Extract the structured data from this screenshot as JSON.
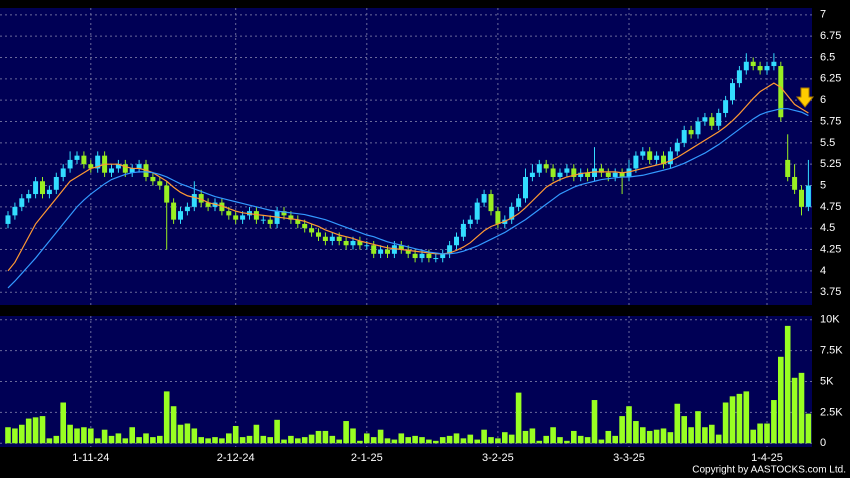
{
  "chart_data": [
    {
      "type": "candlestick",
      "categories": [
        null,
        null,
        null,
        null,
        null,
        null,
        null,
        null,
        null,
        null,
        null,
        null,
        "1-11-24",
        null,
        null,
        null,
        null,
        null,
        null,
        null,
        null,
        null,
        null,
        null,
        null,
        null,
        null,
        null,
        null,
        null,
        null,
        null,
        null,
        "2-12-24",
        null,
        null,
        null,
        null,
        null,
        null,
        null,
        null,
        null,
        null,
        null,
        null,
        null,
        null,
        null,
        null,
        null,
        null,
        "2-1-25",
        null,
        null,
        null,
        null,
        null,
        null,
        null,
        null,
        null,
        null,
        null,
        null,
        null,
        null,
        null,
        null,
        null,
        null,
        "3-2-25",
        null,
        null,
        null,
        null,
        null,
        null,
        null,
        null,
        null,
        null,
        null,
        null,
        null,
        null,
        null,
        null,
        null,
        null,
        "3-3-25",
        null,
        null,
        null,
        null,
        null,
        null,
        null,
        null,
        null,
        null,
        null,
        null,
        null,
        null,
        null,
        null,
        null,
        null,
        null,
        "1-4-25",
        null,
        null,
        null,
        null,
        null,
        null
      ],
      "open": [
        4.55,
        4.65,
        4.75,
        4.85,
        4.9,
        5.05,
        4.9,
        4.95,
        5.1,
        5.2,
        5.3,
        5.35,
        5.25,
        5.2,
        5.35,
        5.15,
        5.2,
        5.25,
        5.15,
        5.2,
        5.25,
        5.1,
        5.05,
        5.0,
        4.8,
        4.6,
        4.7,
        4.75,
        4.9,
        4.8,
        4.75,
        4.8,
        4.7,
        4.65,
        4.6,
        4.65,
        4.7,
        4.6,
        4.6,
        4.55,
        4.7,
        4.65,
        4.6,
        4.55,
        4.5,
        4.45,
        4.4,
        4.35,
        4.4,
        4.35,
        4.3,
        4.35,
        4.3,
        4.3,
        4.2,
        4.25,
        4.2,
        4.3,
        4.25,
        4.2,
        4.15,
        4.2,
        4.15,
        4.15,
        4.2,
        4.3,
        4.4,
        4.55,
        4.6,
        4.8,
        4.9,
        4.7,
        4.55,
        4.6,
        4.75,
        4.85,
        5.1,
        5.15,
        5.25,
        5.2,
        5.1,
        5.15,
        5.2,
        5.1,
        5.15,
        5.1,
        5.2,
        5.15,
        5.1,
        5.15,
        5.1,
        5.2,
        5.35,
        5.4,
        5.3,
        5.35,
        5.25,
        5.4,
        5.5,
        5.65,
        5.6,
        5.75,
        5.8,
        5.7,
        5.85,
        6.0,
        6.2,
        6.35,
        6.45,
        6.4,
        6.35,
        6.4,
        6.4,
        5.3,
        5.1,
        4.95,
        4.75
      ],
      "high": [
        4.7,
        4.8,
        4.9,
        4.95,
        5.1,
        5.1,
        5.0,
        5.15,
        5.25,
        5.4,
        5.4,
        5.4,
        5.3,
        5.4,
        5.4,
        5.25,
        5.3,
        5.3,
        5.25,
        5.3,
        5.3,
        5.15,
        5.1,
        5.05,
        4.85,
        4.75,
        4.8,
        5.05,
        4.95,
        4.85,
        4.85,
        4.85,
        4.75,
        4.7,
        4.7,
        4.75,
        4.75,
        4.65,
        4.65,
        4.75,
        4.75,
        4.7,
        4.65,
        4.6,
        4.55,
        4.5,
        4.45,
        4.45,
        4.45,
        4.4,
        4.4,
        4.4,
        4.35,
        4.35,
        4.3,
        4.3,
        4.35,
        4.35,
        4.3,
        4.25,
        4.25,
        4.25,
        4.2,
        4.25,
        4.35,
        4.45,
        4.6,
        4.65,
        4.85,
        4.95,
        4.95,
        4.75,
        4.65,
        4.8,
        4.9,
        5.2,
        5.25,
        5.3,
        5.3,
        5.25,
        5.2,
        5.25,
        5.25,
        5.2,
        5.2,
        5.45,
        5.25,
        5.2,
        5.2,
        5.2,
        5.3,
        5.4,
        5.45,
        5.45,
        5.4,
        5.4,
        5.45,
        5.55,
        5.7,
        5.7,
        5.8,
        5.85,
        5.85,
        5.9,
        6.05,
        6.25,
        6.4,
        6.55,
        6.5,
        6.45,
        6.45,
        6.55,
        6.45,
        5.6,
        5.25,
        5.0,
        5.3
      ],
      "low": [
        4.5,
        4.6,
        4.7,
        4.8,
        4.85,
        4.85,
        4.85,
        4.9,
        5.05,
        5.15,
        5.25,
        5.2,
        5.15,
        5.15,
        5.1,
        5.1,
        5.15,
        5.1,
        5.1,
        5.15,
        5.05,
        5.0,
        4.95,
        4.25,
        4.55,
        4.55,
        4.65,
        4.7,
        4.75,
        4.7,
        4.7,
        4.65,
        4.6,
        4.55,
        4.55,
        4.6,
        4.55,
        4.55,
        4.5,
        4.5,
        4.6,
        4.55,
        4.5,
        4.45,
        4.4,
        4.35,
        4.3,
        4.3,
        4.3,
        4.25,
        4.25,
        4.25,
        4.25,
        4.15,
        4.15,
        4.15,
        4.15,
        4.2,
        4.15,
        4.1,
        4.1,
        4.1,
        4.1,
        4.1,
        4.15,
        4.25,
        4.35,
        4.5,
        4.55,
        4.75,
        4.65,
        4.5,
        4.5,
        4.55,
        4.7,
        4.8,
        5.05,
        5.1,
        5.15,
        5.05,
        5.05,
        5.1,
        5.05,
        5.05,
        5.05,
        5.05,
        5.1,
        5.05,
        5.05,
        4.9,
        5.05,
        5.15,
        5.3,
        5.25,
        5.25,
        5.2,
        5.2,
        5.35,
        5.45,
        5.55,
        5.55,
        5.7,
        5.65,
        5.65,
        5.8,
        5.95,
        6.15,
        6.3,
        6.35,
        6.3,
        6.3,
        6.35,
        5.75,
        5.05,
        4.9,
        4.65,
        4.7
      ],
      "close": [
        4.65,
        4.75,
        4.85,
        4.9,
        5.05,
        4.9,
        4.95,
        5.1,
        5.2,
        5.3,
        5.35,
        5.25,
        5.2,
        5.35,
        5.15,
        5.2,
        5.25,
        5.15,
        5.2,
        5.25,
        5.1,
        5.05,
        5.0,
        4.8,
        4.6,
        4.7,
        4.75,
        4.9,
        4.8,
        4.75,
        4.8,
        4.7,
        4.65,
        4.6,
        4.65,
        4.7,
        4.6,
        4.6,
        4.55,
        4.7,
        4.65,
        4.6,
        4.55,
        4.5,
        4.45,
        4.4,
        4.35,
        4.4,
        4.35,
        4.3,
        4.35,
        4.3,
        4.3,
        4.2,
        4.25,
        4.2,
        4.3,
        4.25,
        4.2,
        4.15,
        4.2,
        4.15,
        4.15,
        4.2,
        4.3,
        4.4,
        4.55,
        4.6,
        4.8,
        4.9,
        4.7,
        4.55,
        4.6,
        4.75,
        4.85,
        5.1,
        5.15,
        5.25,
        5.2,
        5.1,
        5.15,
        5.2,
        5.1,
        5.15,
        5.1,
        5.2,
        5.15,
        5.1,
        5.15,
        5.1,
        5.2,
        5.35,
        5.4,
        5.3,
        5.35,
        5.25,
        5.4,
        5.5,
        5.65,
        5.6,
        5.75,
        5.8,
        5.7,
        5.85,
        6.0,
        6.2,
        6.35,
        6.45,
        6.4,
        6.35,
        6.4,
        6.45,
        5.8,
        5.1,
        4.95,
        4.75,
        5.0
      ],
      "up_color": "#33ddff",
      "down_color": "#99ee22",
      "series": [
        {
          "color": "#ff9933",
          "values": [
            4.0,
            4.1,
            4.25,
            4.4,
            4.55,
            4.65,
            4.75,
            4.85,
            4.95,
            5.05,
            5.1,
            5.15,
            5.2,
            5.22,
            5.25,
            5.25,
            5.25,
            5.22,
            5.2,
            5.2,
            5.18,
            5.15,
            5.1,
            5.05,
            4.98,
            4.92,
            4.88,
            4.86,
            4.84,
            4.8,
            4.78,
            4.76,
            4.73,
            4.7,
            4.68,
            4.67,
            4.66,
            4.65,
            4.64,
            4.63,
            4.62,
            4.61,
            4.6,
            4.58,
            4.55,
            4.52,
            4.48,
            4.45,
            4.42,
            4.4,
            4.38,
            4.35,
            4.33,
            4.31,
            4.29,
            4.27,
            4.26,
            4.25,
            4.24,
            4.23,
            4.22,
            4.21,
            4.2,
            4.2,
            4.21,
            4.24,
            4.28,
            4.33,
            4.4,
            4.47,
            4.52,
            4.55,
            4.58,
            4.62,
            4.67,
            4.74,
            4.82,
            4.9,
            4.98,
            5.03,
            5.07,
            5.1,
            5.12,
            5.14,
            5.15,
            5.16,
            5.16,
            5.16,
            5.16,
            5.15,
            5.16,
            5.18,
            5.2,
            5.22,
            5.24,
            5.26,
            5.29,
            5.33,
            5.38,
            5.43,
            5.48,
            5.53,
            5.58,
            5.63,
            5.69,
            5.76,
            5.84,
            5.93,
            6.02,
            6.1,
            6.15,
            6.2,
            6.15,
            6.05,
            5.95,
            5.9,
            5.85
          ]
        },
        {
          "color": "#3399ff",
          "values": [
            3.8,
            3.88,
            3.97,
            4.06,
            4.15,
            4.25,
            4.35,
            4.45,
            4.55,
            4.65,
            4.75,
            4.83,
            4.9,
            4.96,
            5.02,
            5.07,
            5.1,
            5.13,
            5.15,
            5.16,
            5.16,
            5.15,
            5.13,
            5.1,
            5.06,
            5.02,
            4.99,
            4.96,
            4.93,
            4.9,
            4.87,
            4.85,
            4.83,
            4.81,
            4.79,
            4.77,
            4.75,
            4.73,
            4.71,
            4.7,
            4.69,
            4.68,
            4.67,
            4.66,
            4.64,
            4.62,
            4.6,
            4.57,
            4.54,
            4.51,
            4.48,
            4.45,
            4.42,
            4.4,
            4.37,
            4.34,
            4.32,
            4.3,
            4.28,
            4.26,
            4.24,
            4.22,
            4.21,
            4.2,
            4.2,
            4.21,
            4.23,
            4.26,
            4.29,
            4.33,
            4.37,
            4.41,
            4.45,
            4.5,
            4.55,
            4.6,
            4.66,
            4.72,
            4.78,
            4.84,
            4.9,
            4.94,
            4.98,
            5.01,
            5.03,
            5.05,
            5.07,
            5.08,
            5.09,
            5.1,
            5.1,
            5.11,
            5.12,
            5.14,
            5.16,
            5.18,
            5.2,
            5.23,
            5.26,
            5.3,
            5.34,
            5.38,
            5.43,
            5.48,
            5.54,
            5.6,
            5.66,
            5.72,
            5.78,
            5.83,
            5.86,
            5.88,
            5.9,
            5.9,
            5.88,
            5.86,
            5.82
          ]
        }
      ],
      "ylim": [
        3.6,
        7.08
      ],
      "yticks": [
        3.75,
        4,
        4.25,
        4.5,
        4.75,
        5,
        5.25,
        5.5,
        5.75,
        6,
        6.25,
        6.5,
        6.75,
        7
      ],
      "grid": true
    },
    {
      "type": "bar",
      "values": [
        1300,
        1200,
        1500,
        2000,
        2100,
        2200,
        400,
        600,
        3300,
        1500,
        1200,
        1300,
        1200,
        400,
        1100,
        600,
        800,
        400,
        1300,
        500,
        800,
        500,
        600,
        4200,
        3000,
        1500,
        1600,
        1200,
        500,
        400,
        500,
        400,
        800,
        1400,
        500,
        600,
        1500,
        600,
        500,
        1900,
        300,
        600,
        400,
        500,
        700,
        1000,
        1000,
        600,
        300,
        1800,
        1200,
        200,
        800,
        500,
        1100,
        400,
        300,
        800,
        500,
        600,
        500,
        300,
        200,
        500,
        600,
        800,
        400,
        700,
        300,
        1100,
        500,
        400,
        900,
        700,
        4100,
        1000,
        1200,
        200,
        600,
        1300,
        500,
        200,
        1000,
        600,
        500,
        3500,
        300,
        1000,
        600,
        2200,
        3000,
        1800,
        1300,
        1000,
        1100,
        1200,
        900,
        3200,
        2200,
        1300,
        2600,
        1300,
        1500,
        700,
        3300,
        3800,
        4000,
        4200,
        1100,
        1600,
        1600,
        3500,
        7000,
        9500,
        5300,
        5700,
        2400
      ],
      "color": "#99ff22",
      "ylim": [
        -300,
        10300
      ],
      "yticks": [
        0,
        {
          "value": 2500,
          "label": "2.5K"
        },
        {
          "value": 5000,
          "label": "5K"
        },
        {
          "value": 7500,
          "label": "7.5K"
        },
        {
          "value": 10000,
          "label": "10K"
        }
      ],
      "grid": true
    }
  ],
  "footer": "Copyright by AASTOCKS.com Ltd."
}
